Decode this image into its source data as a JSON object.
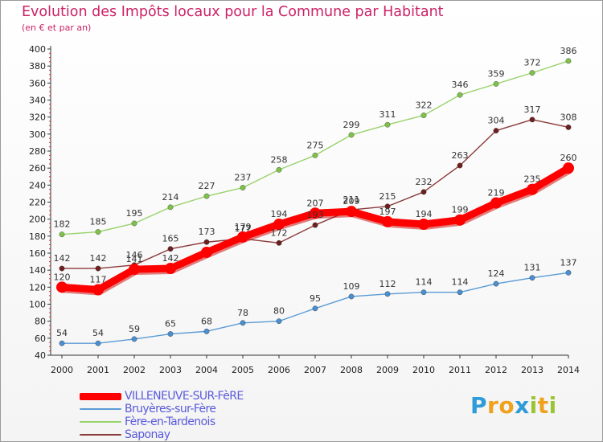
{
  "title": "Evolution des Impôts locaux pour la Commune par Habitant",
  "subtitle": "(en € et par an)",
  "brand": {
    "letters": [
      "P",
      "r",
      "o",
      "x",
      "i",
      "t",
      "i"
    ],
    "colors": [
      "#2f9bd8",
      "#f0a21f",
      "#f0a21f",
      "#2f9bd8",
      "#9bc432",
      "#f0a21f",
      "#9bc432"
    ]
  },
  "chart_data": {
    "type": "line",
    "title": "Evolution des Impôts locaux pour la Commune par Habitant",
    "subtitle": "(en € et par an)",
    "xlabel": "",
    "ylabel": "",
    "x": [
      "2000",
      "2001",
      "2002",
      "2003",
      "2004",
      "2005",
      "2006",
      "2007",
      "2008",
      "2009",
      "2010",
      "2011",
      "2012",
      "2013",
      "2014"
    ],
    "ylim": [
      40,
      400
    ],
    "yticks": [
      40,
      60,
      80,
      100,
      120,
      140,
      160,
      180,
      200,
      220,
      240,
      260,
      280,
      300,
      320,
      340,
      360,
      380,
      400
    ],
    "grid": false,
    "legend_position": "bottom-left",
    "series": [
      {
        "name": "VILLENEUVE-SUR-FèRE",
        "color": "#ff0000",
        "emphasis": true,
        "values": [
          120,
          117,
          141,
          142,
          161,
          179,
          194,
          207,
          209,
          197,
          194,
          199,
          219,
          235,
          260
        ]
      },
      {
        "name": "Bruyères-sur-Fère",
        "color": "#5b9bd5",
        "emphasis": false,
        "values": [
          54,
          54,
          59,
          65,
          68,
          78,
          80,
          95,
          109,
          112,
          114,
          114,
          124,
          131,
          137
        ]
      },
      {
        "name": "Fère-en-Tardenois",
        "color": "#99d26b",
        "emphasis": false,
        "values": [
          182,
          185,
          195,
          214,
          227,
          237,
          258,
          275,
          299,
          311,
          322,
          346,
          359,
          372,
          386
        ]
      },
      {
        "name": "Saponay",
        "color": "#8b3a3a",
        "emphasis": false,
        "values": [
          142,
          142,
          146,
          165,
          173,
          177,
          172,
          193,
          211,
          215,
          232,
          263,
          304,
          317,
          308
        ]
      }
    ],
    "data_labels": [
      {
        "series": 0,
        "labels": [
          "120",
          "117",
          "141",
          "142",
          "",
          "179",
          "194",
          "207",
          "209",
          "197",
          "194",
          "199",
          "219",
          "235",
          "260"
        ]
      },
      {
        "series": 1,
        "labels": [
          "54",
          "54",
          "59",
          "65",
          "68",
          "78",
          "80",
          "95",
          "109",
          "112",
          "114",
          "114",
          "124",
          "131",
          "137"
        ]
      },
      {
        "series": 2,
        "labels": [
          "182",
          "185",
          "195",
          "214",
          "227",
          "237",
          "258",
          "275",
          "299",
          "311",
          "322",
          "346",
          "359",
          "372",
          "386"
        ]
      },
      {
        "series": 3,
        "labels": [
          "142",
          "142",
          "146",
          "165",
          "173",
          "177",
          "172",
          "193",
          "211",
          "215",
          "232",
          "263",
          "304",
          "317",
          "308"
        ]
      }
    ]
  }
}
